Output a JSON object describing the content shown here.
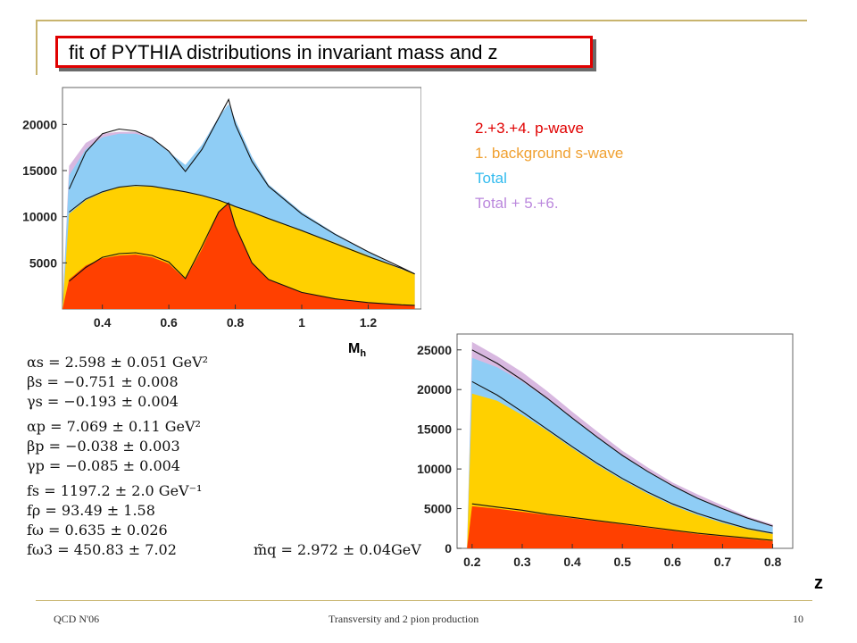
{
  "title": "fit of PYTHIA distributions in invariant mass and z",
  "legend": [
    {
      "label": "2.+3.+4.   p-wave",
      "color": "#e00000"
    },
    {
      "label": "1.  background s-wave",
      "color": "#f0a030"
    },
    {
      "label": "Total",
      "color": "#33bbee"
    },
    {
      "label": "Total + 5.+6.",
      "color": "#bb88dd"
    }
  ],
  "colors": {
    "p_wave": "#ff4000",
    "s_wave": "#ffd000",
    "total": "#8fcdf5",
    "total_plus": "#d8b8e0",
    "frame": "#c8b46e",
    "title_border": "#e00000"
  },
  "chart_data": [
    {
      "type": "area",
      "xlabel": "M",
      "xlabel_sub": "h",
      "xlim": [
        0.28,
        1.36
      ],
      "ylim": [
        0,
        24000
      ],
      "yticks": [
        "20000",
        "15000",
        "10000",
        "5000"
      ],
      "xticks": [
        "0.4",
        "0.6",
        "0.8",
        "1",
        "1.2"
      ],
      "x": [
        0.28,
        0.3,
        0.35,
        0.4,
        0.45,
        0.5,
        0.55,
        0.6,
        0.65,
        0.7,
        0.75,
        0.78,
        0.8,
        0.85,
        0.9,
        1.0,
        1.1,
        1.2,
        1.3,
        1.34
      ],
      "series": [
        {
          "key": "total_plus",
          "values": [
            0,
            15500,
            18000,
            19000,
            19200,
            19200,
            18600,
            17000,
            15600,
            17800,
            20800,
            22200,
            20500,
            16500,
            13500,
            10500,
            8200,
            6200,
            4300,
            3800
          ]
        },
        {
          "key": "total",
          "values": [
            0,
            14500,
            17300,
            18600,
            19000,
            19000,
            18500,
            17000,
            15600,
            17800,
            20800,
            22200,
            20500,
            16500,
            13500,
            10500,
            8200,
            6200,
            4300,
            3800
          ]
        },
        {
          "key": "s_wave",
          "values": [
            0,
            10300,
            11800,
            12600,
            13200,
            13300,
            13300,
            13000,
            12700,
            12300,
            11800,
            11400,
            11100,
            10500,
            9800,
            8500,
            7200,
            5800,
            4300,
            3800
          ]
        },
        {
          "key": "p_wave",
          "values": [
            0,
            3200,
            4700,
            5500,
            5800,
            5900,
            5600,
            4900,
            3200,
            6500,
            10500,
            11500,
            9000,
            5000,
            3200,
            1800,
            1100,
            700,
            450,
            400
          ]
        }
      ],
      "fit_lines": [
        {
          "key": "total_fit",
          "values": [
            null,
            13000,
            17000,
            19000,
            19500,
            19300,
            18500,
            17100,
            14900,
            17300,
            20700,
            22700,
            20000,
            16000,
            13300,
            10300,
            8100,
            6200,
            4500,
            3800
          ]
        },
        {
          "key": "s_wave_fit",
          "values": [
            null,
            10500,
            11900,
            12700,
            13200,
            13400,
            13300,
            13000,
            12700,
            12300,
            11800,
            11400,
            11100,
            10500,
            9800,
            8500,
            7100,
            5700,
            4400,
            3800
          ]
        },
        {
          "key": "p_wave_fit",
          "values": [
            null,
            3000,
            4500,
            5600,
            6000,
            6100,
            5800,
            5100,
            3300,
            6800,
            10500,
            11500,
            9000,
            5000,
            3200,
            1800,
            1100,
            700,
            450,
            400
          ]
        }
      ]
    },
    {
      "type": "area",
      "xlabel": "z",
      "xlim": [
        0.17,
        0.84
      ],
      "ylim": [
        0,
        27000
      ],
      "yticks": [
        "25000",
        "20000",
        "15000",
        "10000",
        "5000",
        "0"
      ],
      "xticks": [
        "0.2",
        "0.3",
        "0.4",
        "0.5",
        "0.6",
        "0.7",
        "0.8"
      ],
      "x": [
        0.19,
        0.2,
        0.25,
        0.3,
        0.35,
        0.4,
        0.45,
        0.5,
        0.55,
        0.6,
        0.65,
        0.7,
        0.75,
        0.8
      ],
      "series": [
        {
          "key": "total_plus",
          "values": [
            0,
            26000,
            24200,
            22200,
            19800,
            17200,
            14700,
            12300,
            10200,
            8300,
            6800,
            5400,
            4000,
            3000
          ]
        },
        {
          "key": "total",
          "values": [
            0,
            24000,
            22800,
            21000,
            18800,
            16400,
            14000,
            11700,
            9700,
            7900,
            6400,
            5000,
            3700,
            2700
          ]
        },
        {
          "key": "s_wave",
          "values": [
            0,
            19500,
            18600,
            16800,
            14800,
            12600,
            10500,
            8600,
            6900,
            5400,
            4200,
            3200,
            2400,
            1800
          ]
        },
        {
          "key": "p_wave",
          "values": [
            0,
            5300,
            5000,
            4600,
            4200,
            3800,
            3400,
            3000,
            2600,
            2200,
            1800,
            1500,
            1200,
            900
          ]
        }
      ],
      "fit_lines": [
        {
          "key": "total_fit",
          "values": [
            null,
            25000,
            23300,
            21200,
            18900,
            16400,
            14000,
            11700,
            9700,
            7900,
            6300,
            5000,
            3800,
            2800
          ]
        },
        {
          "key": "s_wave_fit",
          "values": [
            null,
            21000,
            19300,
            17200,
            15000,
            12800,
            10700,
            8800,
            7100,
            5600,
            4400,
            3400,
            2500,
            1900
          ]
        },
        {
          "key": "p_wave_fit",
          "values": [
            null,
            5600,
            5200,
            4800,
            4300,
            3900,
            3500,
            3100,
            2700,
            2300,
            1900,
            1600,
            1300,
            1000
          ]
        }
      ]
    }
  ],
  "formulas": [
    "αs = 2.598 ± 0.051 GeV²",
    "βs = −0.751 ± 0.008",
    "γs = −0.193 ± 0.004",
    "αp = 7.069 ± 0.11 GeV²",
    "βp = −0.038 ± 0.003",
    "γp = −0.085 ± 0.004",
    "fs = 1197.2 ± 2.0 GeV⁻¹",
    "fρ = 93.49 ± 1.58",
    "fω = 0.635 ± 0.026",
    "fω3 = 450.83 ± 7.02"
  ],
  "mq_formula": "m̃q = 2.972 ± 0.04GeV",
  "footer": {
    "left": "QCD N'06",
    "center": "Transversity and 2 pion production",
    "right": "10"
  }
}
